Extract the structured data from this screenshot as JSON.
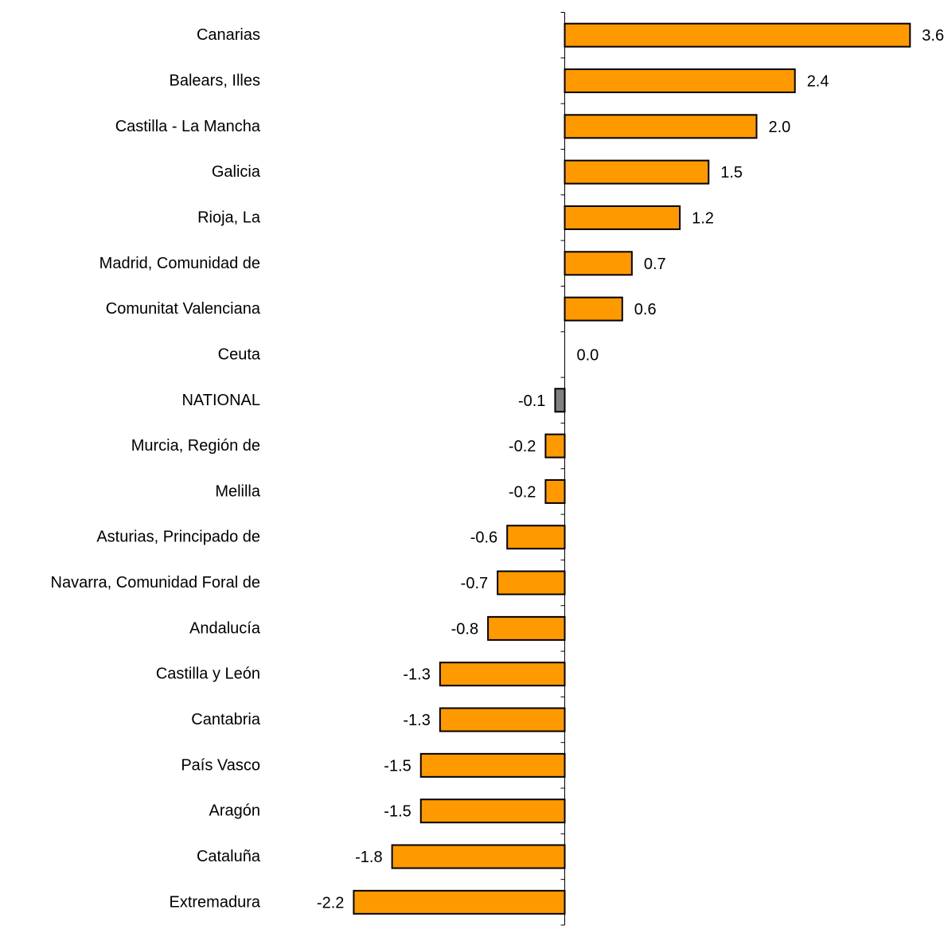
{
  "chart_data": {
    "type": "bar",
    "orientation": "horizontal",
    "title": "",
    "xlabel": "",
    "ylabel": "",
    "categories": [
      "Canarias",
      "Balears, Illes",
      "Castilla - La Mancha",
      "Galicia",
      "Rioja, La",
      "Madrid, Comunidad de",
      "Comunitat Valenciana",
      "Ceuta",
      "NATIONAL",
      "Murcia, Región de",
      "Melilla",
      "Asturias, Principado de",
      "Navarra, Comunidad Foral de",
      "Andalucía",
      "Castilla y León",
      "Cantabria",
      "País Vasco",
      "Aragón",
      "Cataluña",
      "Extremadura"
    ],
    "values": [
      3.6,
      2.4,
      2.0,
      1.5,
      1.2,
      0.7,
      0.6,
      0.0,
      -0.1,
      -0.2,
      -0.2,
      -0.6,
      -0.7,
      -0.8,
      -1.3,
      -1.3,
      -1.5,
      -1.5,
      -1.8,
      -2.2
    ],
    "value_labels": [
      "3.6",
      "2.4",
      "2.0",
      "1.5",
      "1.2",
      "0.7",
      "0.6",
      "0.0",
      "-0.1",
      "-0.2",
      "-0.2",
      "-0.6",
      "-0.7",
      "-0.8",
      "-1.3",
      "-1.3",
      "-1.5",
      "-1.5",
      "-1.8",
      "-2.2"
    ],
    "highlight_category": "NATIONAL",
    "xlim": [
      -3.2,
      3.8
    ],
    "grid": false,
    "legend": "none",
    "colors": {
      "bar": "#ff9900",
      "highlight": "#808080",
      "stroke": "#000000",
      "axis": "#000000"
    }
  }
}
